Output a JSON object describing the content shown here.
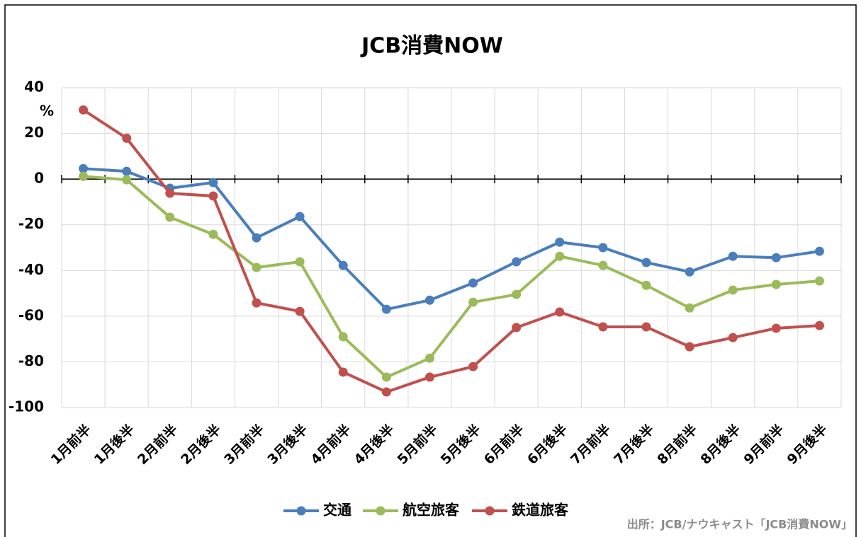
{
  "chart_data": {
    "type": "line",
    "title": "JCB消費NOW",
    "y_unit": "%",
    "categories": [
      "1月前半",
      "1月後半",
      "2月前半",
      "2月後半",
      "3月前半",
      "3月後半",
      "4月前半",
      "4月後半",
      "5月前半",
      "5月後半",
      "6月前半",
      "6月後半",
      "7月前半",
      "7月後半",
      "8月前半",
      "8月後半",
      "9月前半",
      "9月後半"
    ],
    "series": [
      {
        "name": "交通",
        "color": "#4a7ebb",
        "values": [
          4.6,
          3.4,
          -4,
          -1.5,
          -25.7,
          -16.4,
          -37.8,
          -57,
          -53,
          -45.5,
          -36.2,
          -27.6,
          -30,
          -36.5,
          -40.6,
          -33.8,
          -34.4,
          -31.6
        ]
      },
      {
        "name": "航空旅客",
        "color": "#9bbb59",
        "values": [
          1.2,
          -0.3,
          -16.7,
          -24.2,
          -38.7,
          -36.2,
          -69,
          -86.7,
          -78.4,
          -53.9,
          -50.5,
          -33.8,
          -37.8,
          -46.5,
          -56.4,
          -48.6,
          -46.1,
          -44.6
        ]
      },
      {
        "name": "鉄道旅客",
        "color": "#c0504d",
        "values": [
          30.3,
          17.9,
          -6.2,
          -7.4,
          -54.2,
          -57.9,
          -84.5,
          -93.2,
          -86.7,
          -82.1,
          -65,
          -58.2,
          -64.7,
          -64.7,
          -73.4,
          -69.4,
          -65.3,
          -64.1
        ]
      }
    ],
    "ylim": [
      -100,
      40
    ],
    "yticks": [
      -100,
      -80,
      -60,
      -40,
      -20,
      0,
      20,
      40
    ],
    "grid": true,
    "legend": "bottom",
    "source": "出所：JCB/ナウキャスト「JCB消費NOW」"
  }
}
